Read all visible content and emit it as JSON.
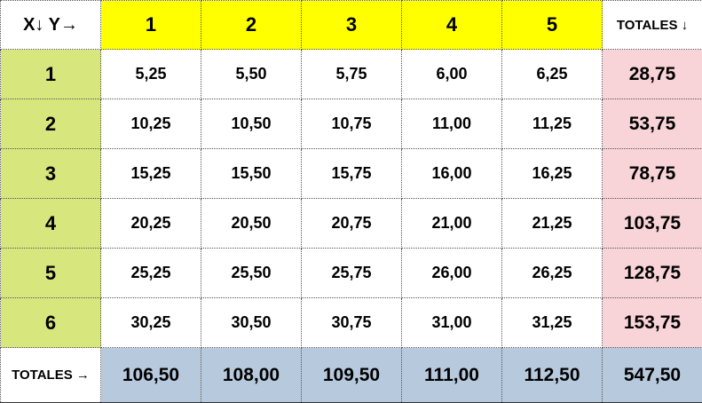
{
  "table": {
    "corner_label": "X↓ Y→",
    "y_headers": [
      "1",
      "2",
      "3",
      "4",
      "5"
    ],
    "row_totals_header": "TOTALES ↓",
    "rows": [
      {
        "x": "1",
        "values": [
          "5,25",
          "5,50",
          "5,75",
          "6,00",
          "6,25"
        ],
        "total": "28,75"
      },
      {
        "x": "2",
        "values": [
          "10,25",
          "10,50",
          "10,75",
          "11,00",
          "11,25"
        ],
        "total": "53,75"
      },
      {
        "x": "3",
        "values": [
          "15,25",
          "15,50",
          "15,75",
          "16,00",
          "16,25"
        ],
        "total": "78,75"
      },
      {
        "x": "4",
        "values": [
          "20,25",
          "20,50",
          "20,75",
          "21,00",
          "21,25"
        ],
        "total": "103,75"
      },
      {
        "x": "5",
        "values": [
          "25,25",
          "25,50",
          "25,75",
          "26,00",
          "26,25"
        ],
        "total": "128,75"
      },
      {
        "x": "6",
        "values": [
          "30,25",
          "30,50",
          "30,75",
          "31,00",
          "31,25"
        ],
        "total": "153,75"
      }
    ],
    "column_totals_label": "TOTALES →",
    "column_totals": [
      "106,50",
      "108,00",
      "109,50",
      "111,00",
      "112,50"
    ],
    "grand_total": "547,50"
  },
  "colors": {
    "y_header_bg": "#ffff00",
    "x_header_bg": "#d7e77d",
    "row_total_bg": "#f8d3d8",
    "column_total_bg": "#b7c9dd"
  }
}
